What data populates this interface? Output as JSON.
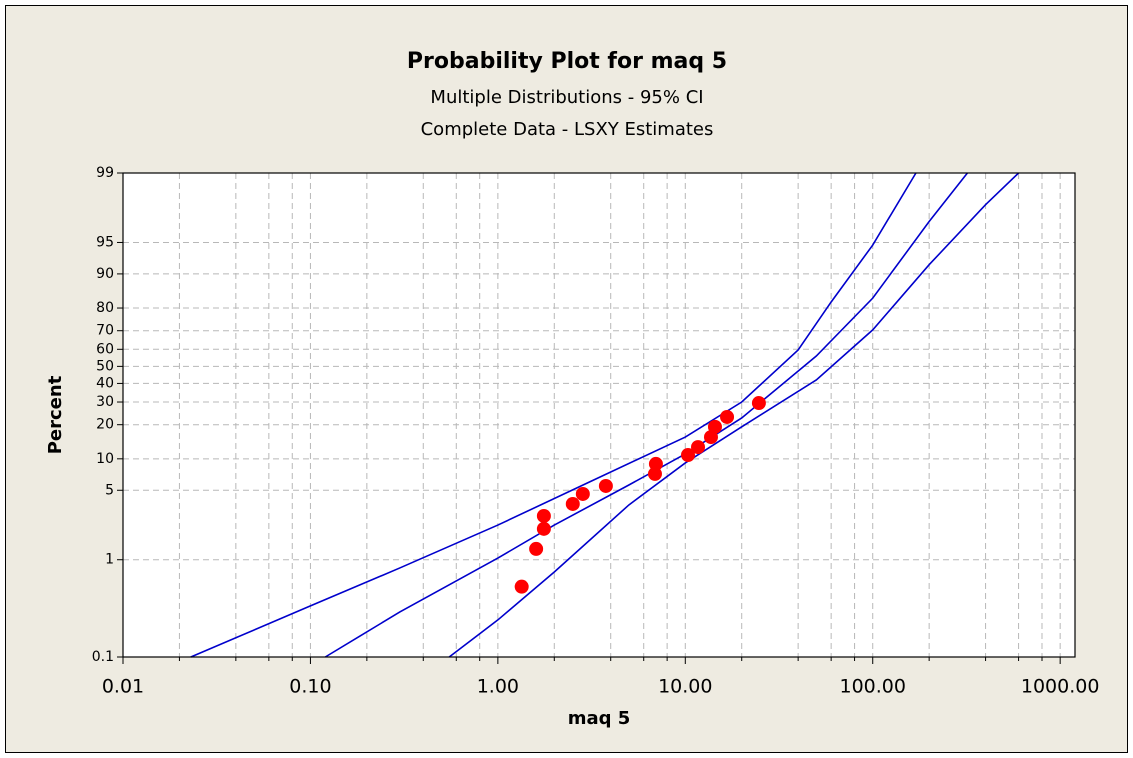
{
  "chart_data": {
    "type": "probability",
    "title": "Probability Plot for maq 5",
    "subtitle": [
      "Multiple Distributions - 95% CI",
      "Complete Data - LSXY Estimates"
    ],
    "xlabel": "maq 5",
    "ylabel": "Percent",
    "xscale": "log",
    "yscale": "logit",
    "grid": true,
    "xlim": [
      0.01,
      1200
    ],
    "ylim": [
      0.1,
      99
    ],
    "xticks": [
      {
        "value": 0.01,
        "label": "0.01"
      },
      {
        "value": 0.1,
        "label": "0.10"
      },
      {
        "value": 1,
        "label": "1.00"
      },
      {
        "value": 10,
        "label": "10.00"
      },
      {
        "value": 100,
        "label": "100.00"
      },
      {
        "value": 1000,
        "label": "1000.00"
      }
    ],
    "xminorticks": [
      0.02,
      0.04,
      0.06,
      0.08,
      0.2,
      0.4,
      0.6,
      0.8,
      2,
      4,
      6,
      8,
      20,
      40,
      60,
      80,
      200,
      400,
      600,
      800
    ],
    "yticks": [
      0.1,
      1,
      5,
      10,
      20,
      30,
      40,
      50,
      60,
      70,
      80,
      90,
      95,
      99
    ],
    "points": {
      "color": "#ff0000",
      "x": [
        1.34,
        1.6,
        1.76,
        1.76,
        2.51,
        2.84,
        3.77,
        6.89,
        6.97,
        10.34,
        11.69,
        13.71,
        14.4,
        16.7,
        24.7
      ],
      "y": [
        0.53,
        1.29,
        2.06,
        2.78,
        3.66,
        4.6,
        5.51,
        7.2,
        8.96,
        10.85,
        12.8,
        15.7,
        19.2,
        23.1,
        29.5
      ]
    },
    "lines": [
      {
        "color": "#0000cc",
        "x": [
          0.12,
          0.3,
          1,
          2,
          5,
          10,
          20,
          50,
          100,
          200,
          320
        ],
        "y": [
          0.1,
          0.291,
          1.04,
          2.25,
          5.63,
          11.1,
          22.7,
          56.1,
          83.5,
          96.9,
          99
        ]
      },
      {
        "color": "#0000cc",
        "x": [
          0.023,
          0.1,
          0.3,
          1,
          3,
          10,
          20,
          40,
          60,
          100,
          170
        ],
        "y": [
          0.1,
          0.336,
          0.824,
          2.25,
          5.89,
          15.7,
          30.0,
          59.6,
          82.2,
          94.7,
          99
        ]
      },
      {
        "color": "#0000cc",
        "x": [
          0.55,
          1,
          2,
          5,
          10,
          20,
          50,
          100,
          200,
          400,
          600
        ],
        "y": [
          0.1,
          0.241,
          0.749,
          3.58,
          9.15,
          19.2,
          42.0,
          70.4,
          91.8,
          97.9,
          99
        ]
      }
    ]
  }
}
